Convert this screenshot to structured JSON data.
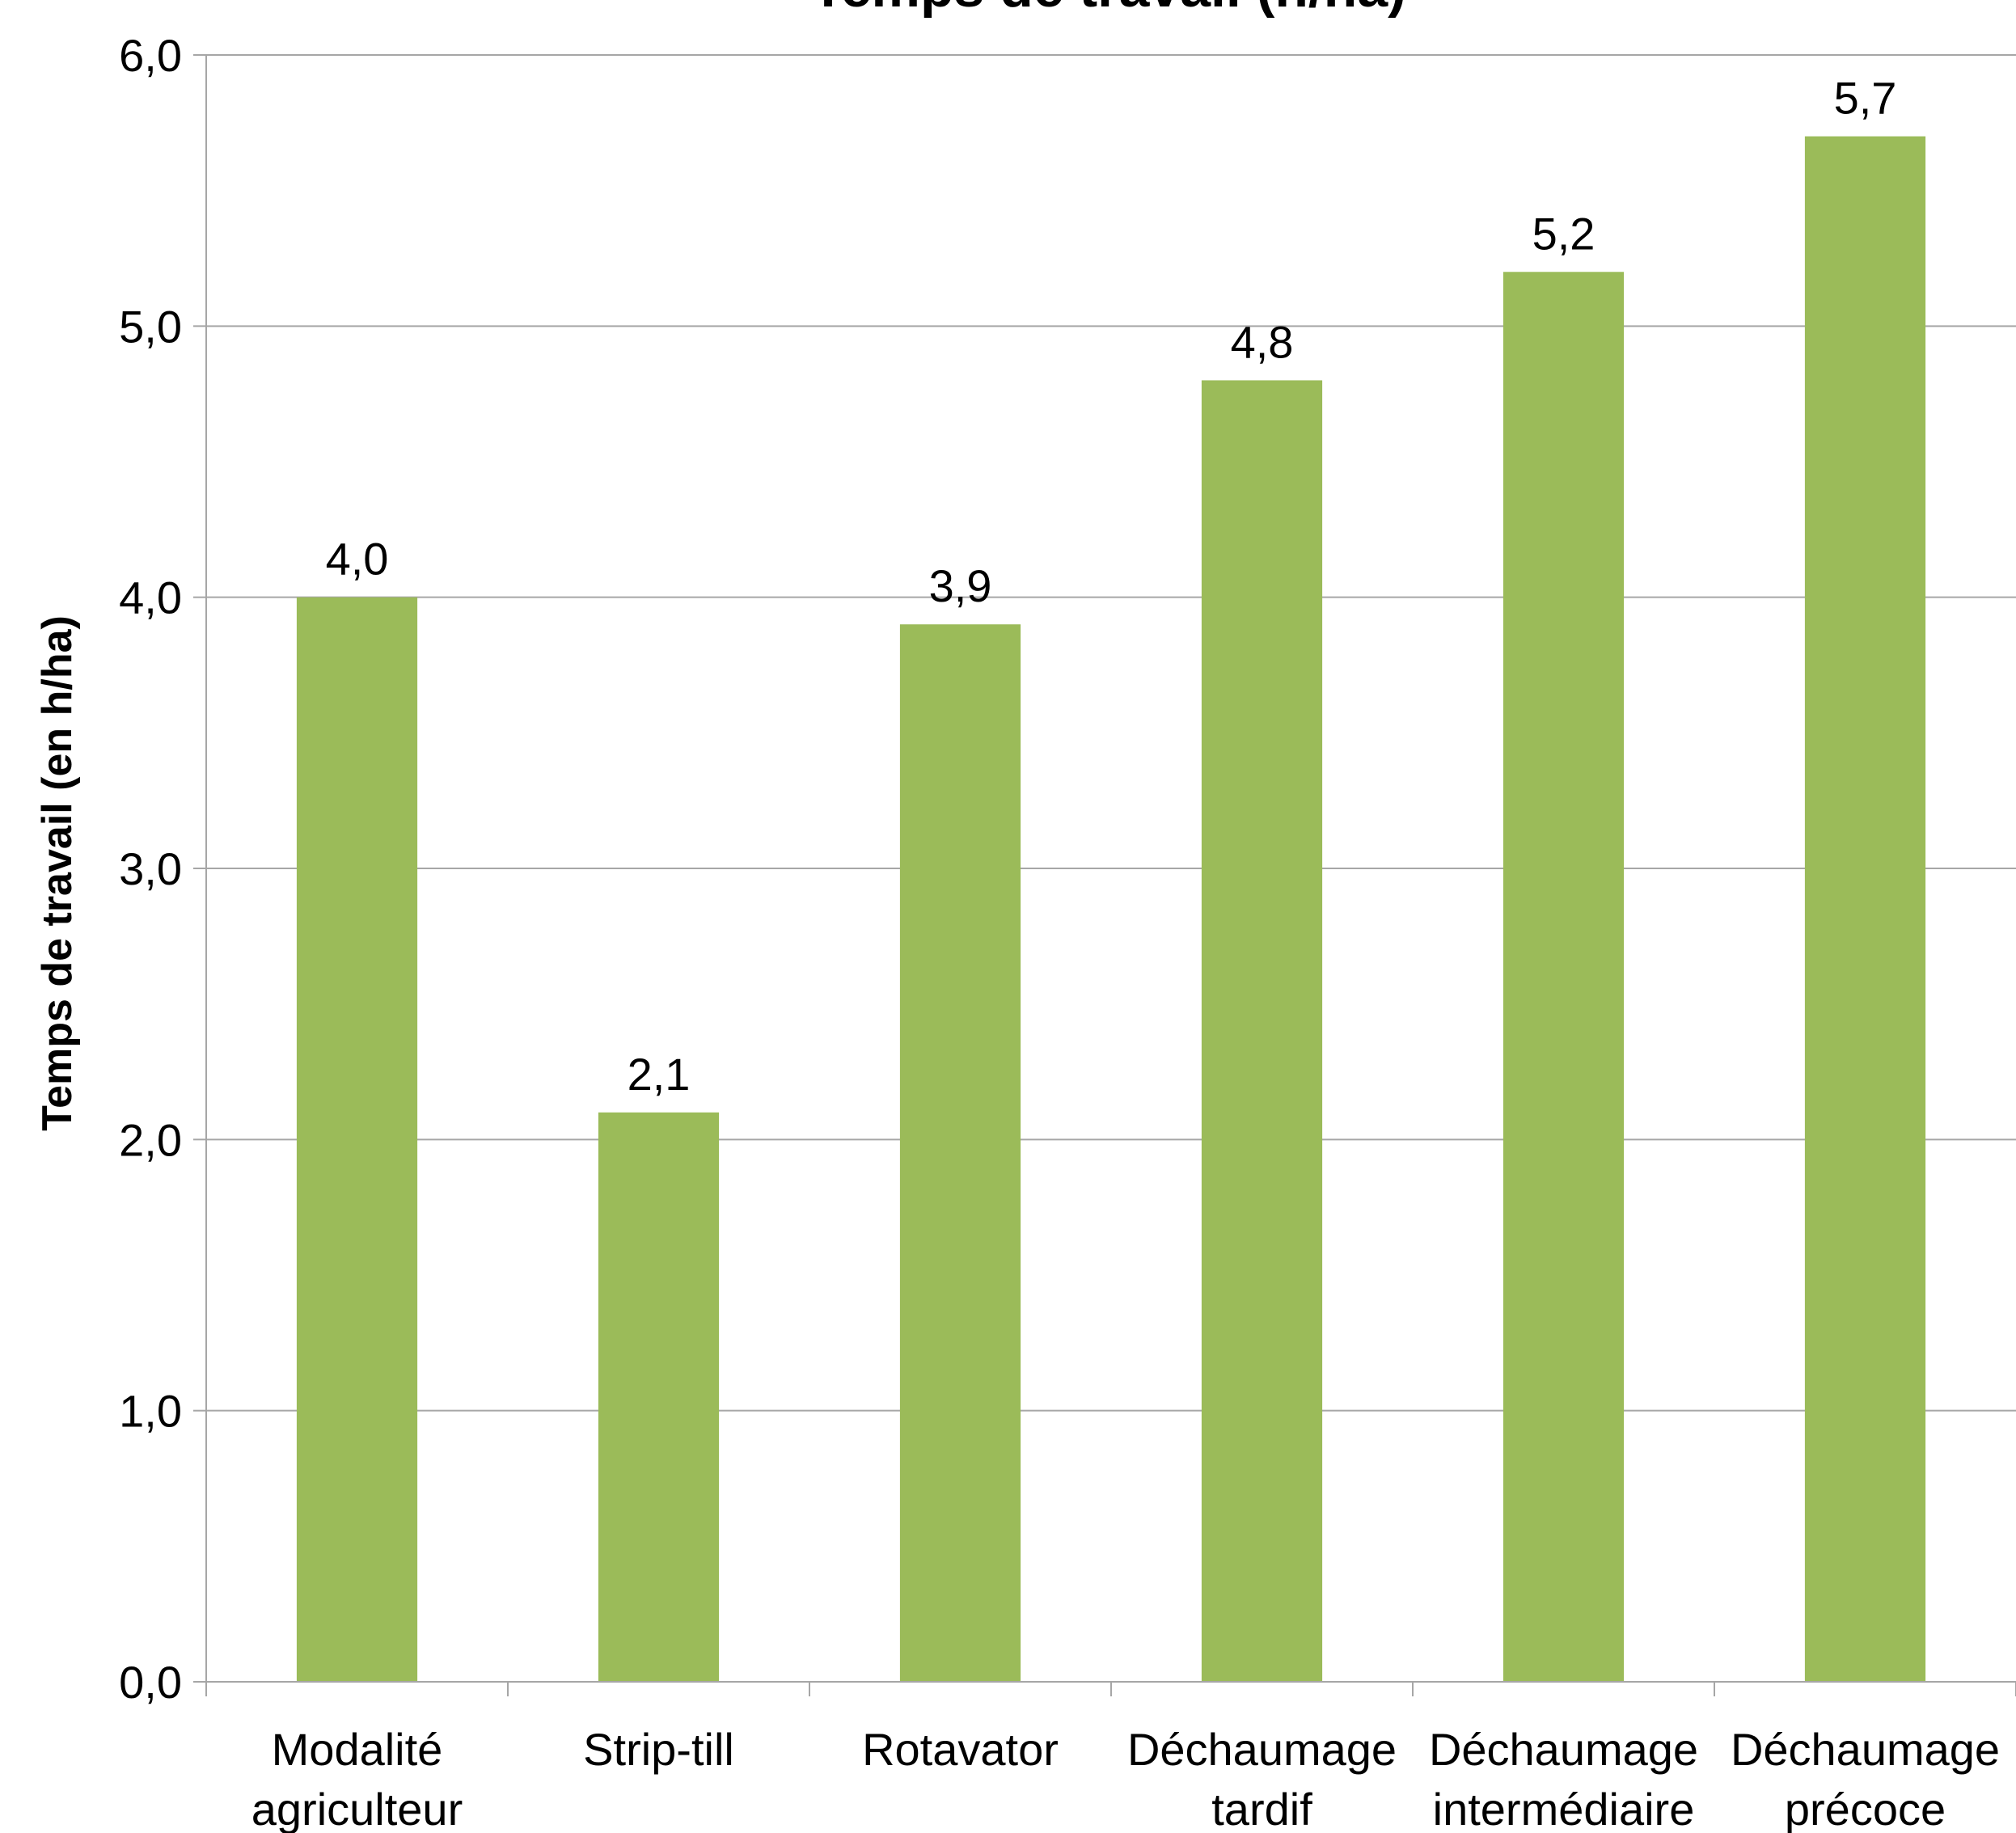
{
  "chart_data": {
    "type": "bar",
    "title": "Temps de travail (h/ha)",
    "ylabel": "Temps de travail (en h/ha)",
    "xlabel": "",
    "categories": [
      [
        "Modalité",
        "agriculteur"
      ],
      [
        "Strip-till"
      ],
      [
        "Rotavator"
      ],
      [
        "Déchaumage",
        "tardif"
      ],
      [
        "Déchaumage",
        "intermédiaire"
      ],
      [
        "Déchaumage",
        "précoce"
      ]
    ],
    "values": [
      4.0,
      2.1,
      3.9,
      4.8,
      5.2,
      5.7
    ],
    "value_labels": [
      "4,0",
      "2,1",
      "3,9",
      "4,8",
      "5,2",
      "5,7"
    ],
    "yticks": [
      0,
      1,
      2,
      3,
      4,
      5,
      6
    ],
    "ytick_labels": [
      "0,0",
      "1,0",
      "2,0",
      "3,0",
      "4,0",
      "5,0",
      "6,0"
    ],
    "ylim": [
      0,
      6
    ],
    "grid": true,
    "legend": "none",
    "colors": {
      "bar": "#9BBB59",
      "grid": "#A6A6A6",
      "axis": "#A6A6A6"
    }
  }
}
